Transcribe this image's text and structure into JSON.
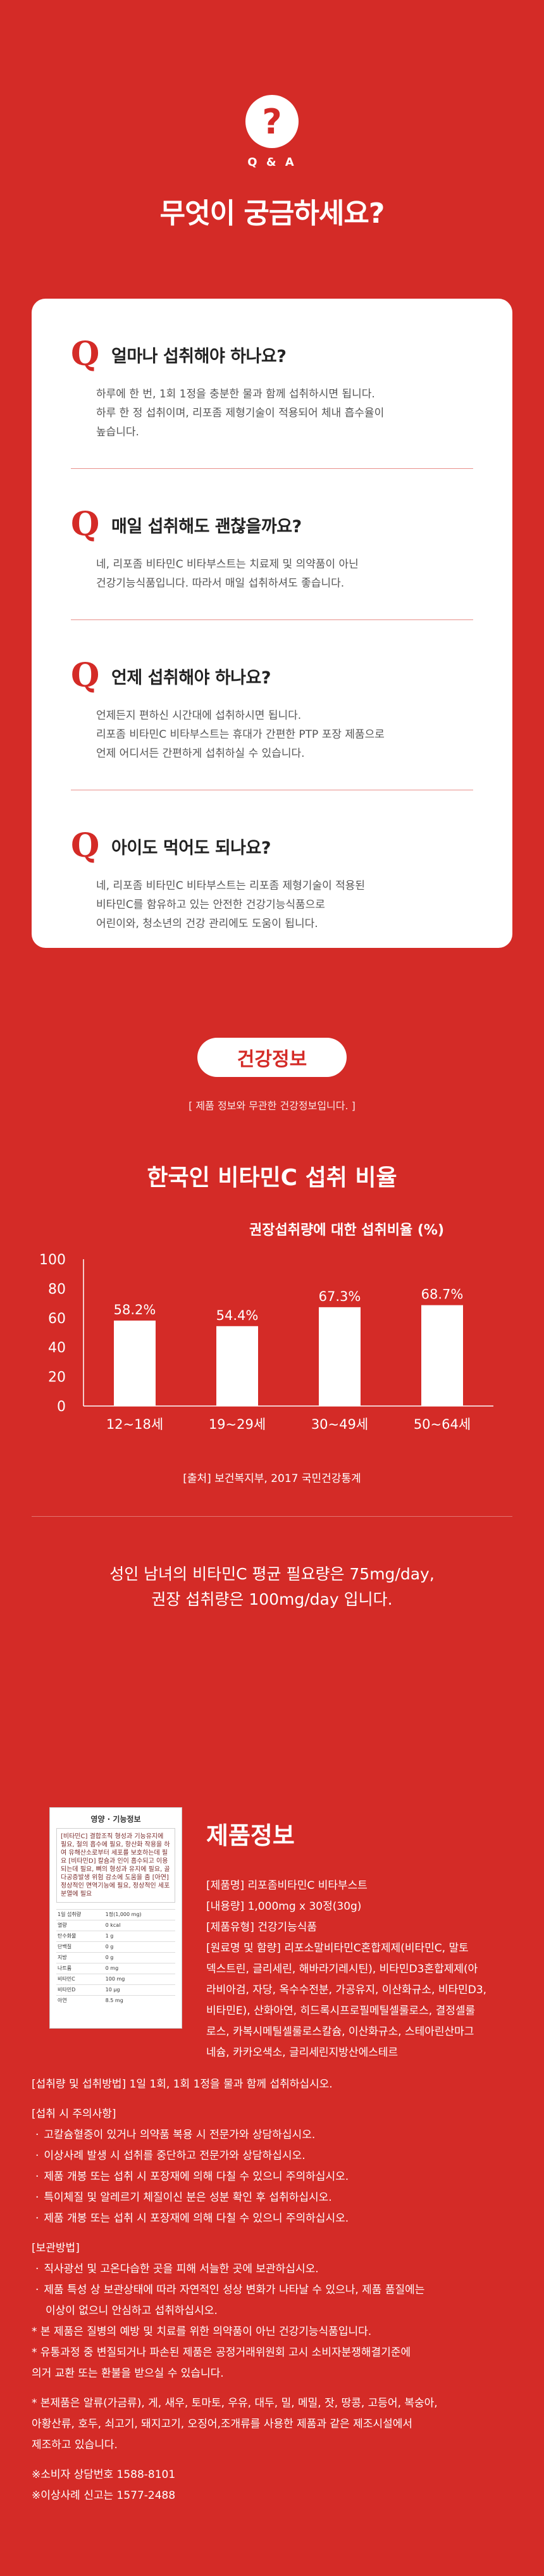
{
  "qa": {
    "icon_glyph": "?",
    "label": "Q & A",
    "title": "무엇이 궁금하세요?",
    "items": [
      {
        "q": "얼마나 섭취해야 하나요?",
        "a": [
          "하루에 한 번, 1회 1정을 충분한 물과 함께 섭취하시면 됩니다.",
          "하루 한 정 섭취이며, 리포좀 제형기술이 적용되어 체내 흡수율이",
          "높습니다."
        ]
      },
      {
        "q": "매일 섭취해도 괜찮을까요?",
        "a": [
          "네, 리포좀 비타민C 비타부스트는 치료제 및 의약품이 아닌",
          "건강기능식품입니다. 따라서 매일 섭취하셔도 좋습니다."
        ]
      },
      {
        "q": "언제 섭취해야 하나요?",
        "a": [
          "언제든지 편하신 시간대에 섭취하시면 됩니다.",
          "리포좀 비타민C 비타부스트는 휴대가 간편한 PTP 포장 제품으로",
          "언제 어디서든 간편하게 섭취하실 수 있습니다."
        ]
      },
      {
        "q": "아이도 먹어도 되나요?",
        "a": [
          "네, 리포좀 비타민C 비타부스트는 리포좀 제형기술이 적용된",
          "비타민C를 함유하고 있는 안전한 건강기능식품으로",
          "어린이와, 청소년의 건강 관리에도 도움이 됩니다."
        ]
      }
    ]
  },
  "health": {
    "pill": "건강정보",
    "note": "[ 제품 정보와 무관한 건강정보입니다. ]",
    "chart_title": "한국인 비타민C 섭취 비율",
    "source": "[출처] 보건복지부, 2017 국민건강통계",
    "statement": [
      "성인 남녀의 비타민C 평균 필요량은 75mg/day,",
      "권장 섭취량은 100mg/day 입니다."
    ]
  },
  "chart_data": {
    "type": "bar",
    "title": "권장섭취량에 대한 섭취비율 (%)",
    "categories": [
      "12~18세",
      "19~29세",
      "30~49세",
      "50~64세"
    ],
    "values": [
      58.2,
      54.4,
      67.3,
      68.7
    ],
    "data_labels": [
      "58.2%",
      "54.4%",
      "67.3%",
      "68.7%"
    ],
    "ylim": [
      0,
      100
    ],
    "yticks": [
      "0",
      "20",
      "40",
      "60",
      "80",
      "100"
    ],
    "bar_color": "#ffffff",
    "grid": false
  },
  "product": {
    "label_title": "영양 · 기능정보",
    "label_body": "[비타민C] 결합조직 형성과 기능유지에 필요, 철의 흡수에 필요, 항산화 작용을 하여 유해산소로부터 세포를 보호하는데 필요 [비타민D] 칼슘과 인이 흡수되고 이용되는데 필요, 뼈의 형성과 유지에 필요, 골다공증발생 위험 감소에 도움을 줌 [아연] 정상적인 면역기능에 필요, 정상적인 세포분열에 필요",
    "label_table": [
      [
        "1일 섭취량",
        "1정(1,000 mg)"
      ],
      [
        "열량",
        "0 kcal"
      ],
      [
        "탄수화물",
        "1 g"
      ],
      [
        "단백질",
        "0 g"
      ],
      [
        "지방",
        "0 g"
      ],
      [
        "나트륨",
        "0 mg"
      ],
      [
        "비타민C",
        "100 mg"
      ],
      [
        "비타민D",
        "10 μg"
      ],
      [
        "아연",
        "8.5 mg"
      ]
    ],
    "title": "제품정보",
    "rows": [
      "[제품명] 리포좀비타민C 비타부스트",
      "[내용량] 1,000mg x 30정(30g)",
      "[제품유형] 건강기능식품",
      "[원료명 및 함량] 리포소말비타민C혼합제제(비타민C, 말토",
      "덱스트린, 글리세린, 해바라기레시틴), 비타민D3혼합제제(아",
      "라비아검, 자당, 옥수수전분, 가공유지, 이산화규소, 비타민D3,",
      "비타민E), 산화아연, 히드록시프로필메틸셀룰로스, 결정셀룰",
      "로스, 카복시메틸셀룰로스칼슘, 이산화규소, 스테아린산마그",
      "네슘, 카카오색소, 글리세린지방산에스테르"
    ]
  },
  "usage": {
    "intake": "[섭취량 및 섭취방법] 1일 1회, 1회 1정을 물과 함께 섭취하십시오.",
    "caution_title": "[섭취 시 주의사항]",
    "cautions": [
      "고칼슘혈증이 있거나 의약품 복용 시 전문가와 상담하십시오.",
      "이상사례 발생 시 섭취를 중단하고 전문가와 상담하십시오.",
      "제품 개봉 또는 섭취 시 포장재에 의해 다칠 수 있으니 주의하십시오.",
      "특이체질 및 알레르기 체질이신 분은 성분 확인 후 섭취하십시오.",
      "제품 개봉 또는 섭취 시 포장재에 의해 다칠 수 있으니 주의하십시오."
    ],
    "storage_title": "[보관방법]",
    "storage": [
      "직사광선 및 고온다습한 곳을 피해 서늘한 곳에 보관하십시오.",
      "제품 특성 상 보관상태에 따라 자연적인 성상 변화가 나타날 수 있으나, 제품 품질에는",
      "이상이 없으니 안심하고 섭취하십시오."
    ],
    "notes": [
      "* 본 제품은 질병의 예방 및 치료를 위한 의약품이 아닌 건강기능식품입니다.",
      "* 유통과정 중 변질되거나 파손된 제품은 공정거래위원회 고시 소비자분쟁해결기준에",
      "   의거 교환 또는 환불을 받으실 수 있습니다.",
      "* 본제품은 알류(가금류), 게, 새우, 토마토, 우유, 대두, 밀, 메밀, 잣, 땅콩, 고등어, 복숭아,",
      "   아황산류, 호두, 쇠고기, 돼지고기, 오징어,조개류를 사용한 제품과 같은 제조시설에서",
      "   제조하고 있습니다."
    ],
    "contacts": [
      "※소비자 상담번호 1588-8101",
      "※이상사례 신고는 1577-2488"
    ]
  }
}
